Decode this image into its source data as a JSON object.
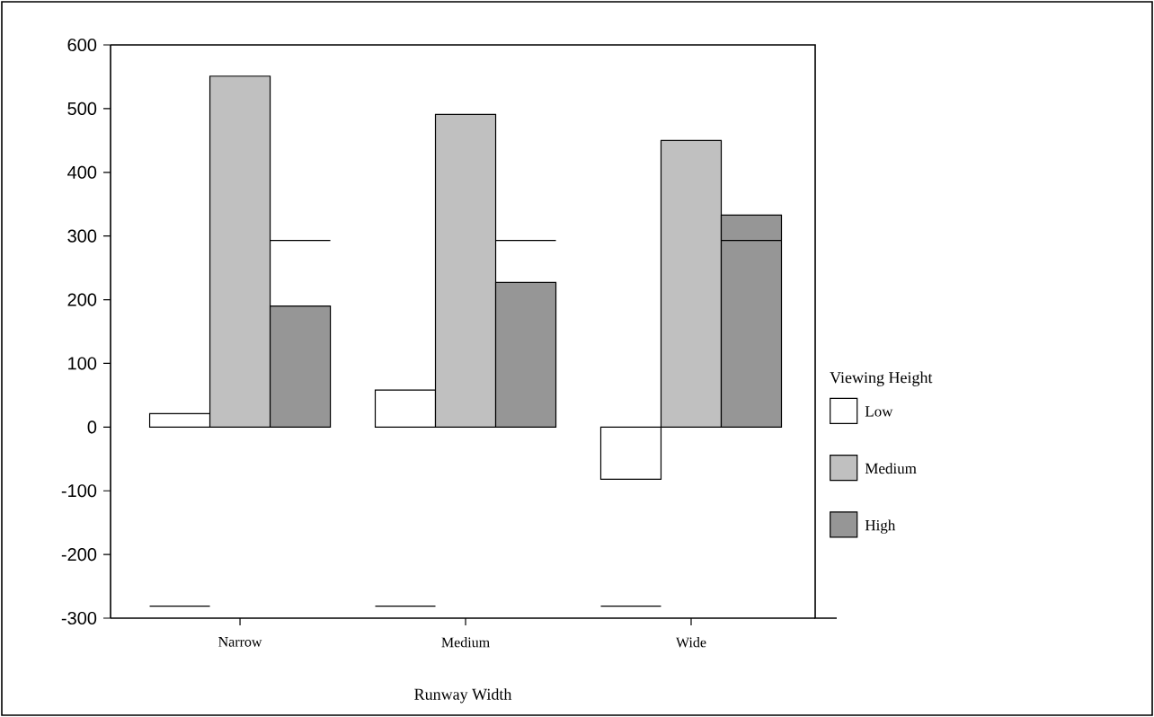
{
  "chart_data": {
    "type": "bar",
    "xlabel": "Runway Width",
    "legend_title": "Viewing Height",
    "legend": "right",
    "categories": [
      "Narrow",
      "Medium",
      "Wide"
    ],
    "ylim": [
      -300,
      600
    ],
    "yticks": [
      -300,
      -200,
      -100,
      0,
      100,
      200,
      300,
      400,
      500,
      600
    ],
    "series": [
      {
        "name": "Low",
        "color": "#ffffff",
        "values": [
          21,
          58,
          -82
        ]
      },
      {
        "name": "Medium",
        "color": "#c0c0c0",
        "values": [
          551,
          491,
          450
        ]
      },
      {
        "name": "High",
        "color": "#969696",
        "values": [
          190,
          227,
          333
        ]
      }
    ],
    "ref_lines": [
      {
        "axis": "y",
        "value": 293,
        "color": "#000000"
      },
      {
        "axis": "y",
        "value": -281,
        "color": "#000000"
      }
    ]
  }
}
